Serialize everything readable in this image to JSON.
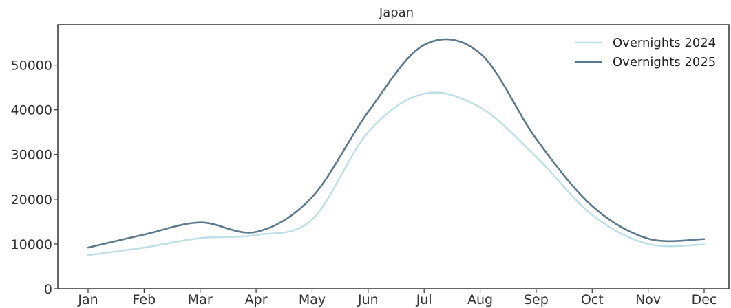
{
  "chart_data": {
    "type": "line",
    "title": "Japan",
    "xlabel": "",
    "ylabel": "",
    "categories": [
      "Jan",
      "Feb",
      "Mar",
      "Apr",
      "May",
      "Jun",
      "Jul",
      "Aug",
      "Sep",
      "Oct",
      "Nov",
      "Dec"
    ],
    "ylim": [
      0,
      59000
    ],
    "yticks": [
      0,
      10000,
      20000,
      30000,
      40000,
      50000
    ],
    "grid": false,
    "legend_position": "top-right",
    "series": [
      {
        "name": "Overnights 2024",
        "color": "#bfe0e6",
        "values": [
          7500,
          9200,
          11300,
          12000,
          15500,
          35000,
          43600,
          40500,
          29500,
          16500,
          10000,
          9900
        ]
      },
      {
        "name": "Overnights 2025",
        "color": "#5b7a8f",
        "values": [
          9200,
          12100,
          14800,
          12700,
          20500,
          39500,
          54500,
          52600,
          33500,
          18500,
          11200,
          11100
        ]
      }
    ]
  }
}
